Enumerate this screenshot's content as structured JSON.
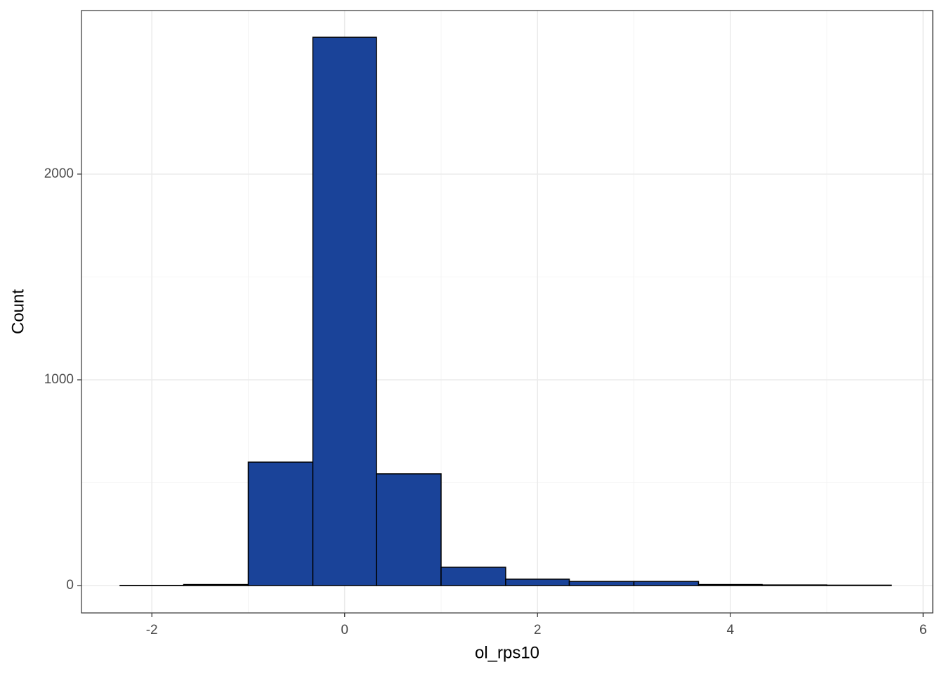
{
  "chart_data": {
    "type": "histogram",
    "x_label": "ol_rps10",
    "y_label": "Count",
    "bins": [
      -2.33,
      -1.67,
      -1,
      -0.33,
      0.33,
      1,
      1.67,
      2.33,
      3,
      3.67,
      4.33,
      5,
      5.67
    ],
    "counts": [
      1,
      5,
      600,
      2665,
      543,
      89,
      31,
      20,
      20,
      5,
      3,
      2
    ],
    "color": "#1a4399",
    "edge_color": "#000000",
    "xlim": [
      -2.73,
      6.1
    ],
    "xticks": [
      -2,
      0,
      2,
      4,
      6
    ],
    "ylim": [
      -133,
      2795
    ],
    "yticks": [
      0,
      1000,
      2000
    ],
    "grid": true
  }
}
